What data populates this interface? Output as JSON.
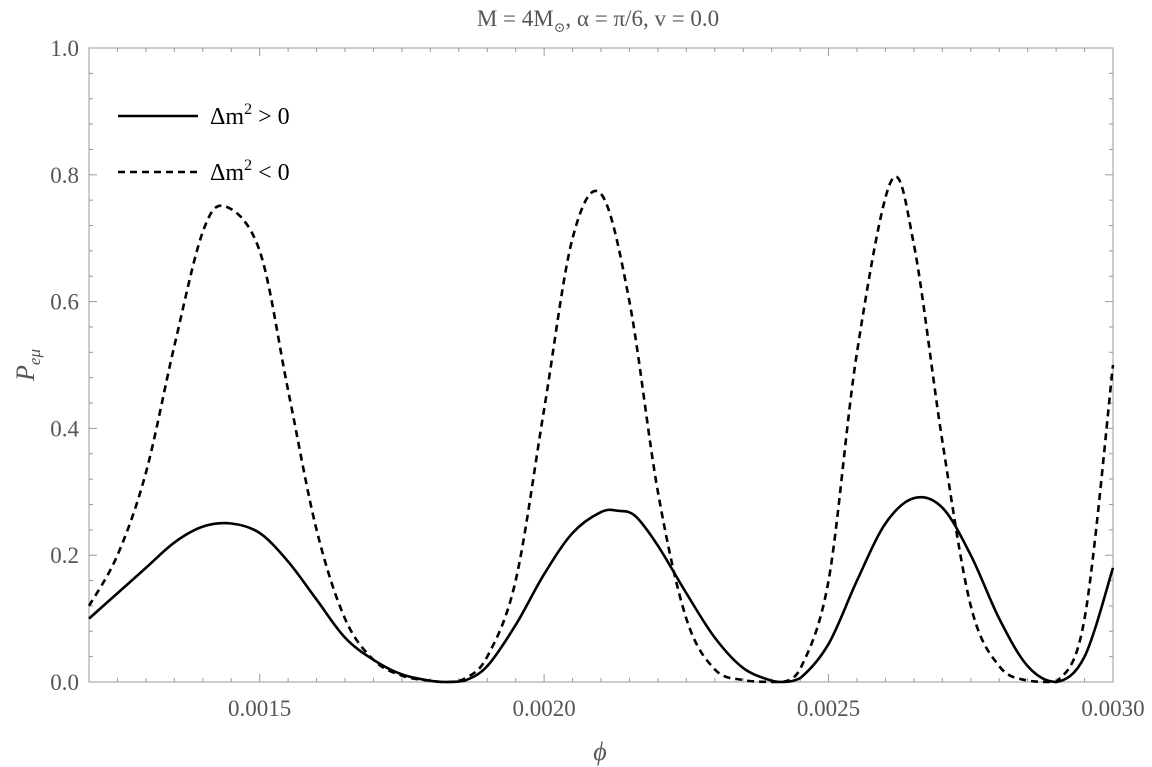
{
  "chart_data": {
    "type": "line",
    "title": "M = 4M⊙, α = π/6, v = 0.0",
    "xlabel": "ϕ",
    "ylabel": "Peμ",
    "xlim": [
      0.0012,
      0.003
    ],
    "ylim": [
      0.0,
      1.0
    ],
    "x_ticks": [
      0.0015,
      0.002,
      0.0025,
      0.003
    ],
    "x_tick_labels": [
      "0.0015",
      "0.0020",
      "0.0025",
      "0.0030"
    ],
    "y_ticks": [
      0.0,
      0.2,
      0.4,
      0.6,
      0.8,
      1.0
    ],
    "y_tick_labels": [
      "0.0",
      "0.2",
      "0.4",
      "0.6",
      "0.8",
      "1.0"
    ],
    "grid": false,
    "legend_position": "top-left",
    "series": [
      {
        "name": "Δm² > 0",
        "style": "solid",
        "color": "#000000",
        "x": [
          0.0012,
          0.00125,
          0.0013,
          0.00135,
          0.0014,
          0.00145,
          0.0015,
          0.00155,
          0.0016,
          0.00165,
          0.0017,
          0.00175,
          0.0018,
          0.00183,
          0.00186,
          0.0019,
          0.00195,
          0.002,
          0.00205,
          0.0021,
          0.00213,
          0.00216,
          0.0022,
          0.00225,
          0.0023,
          0.00235,
          0.0024,
          0.00242,
          0.00245,
          0.0025,
          0.00255,
          0.0026,
          0.00265,
          0.0027,
          0.00275,
          0.0028,
          0.00285,
          0.0029,
          0.00295,
          0.003
        ],
        "y": [
          0.1,
          0.14,
          0.18,
          0.22,
          0.245,
          0.25,
          0.235,
          0.19,
          0.13,
          0.07,
          0.035,
          0.012,
          0.002,
          0.0,
          0.002,
          0.025,
          0.09,
          0.17,
          0.235,
          0.268,
          0.27,
          0.262,
          0.215,
          0.14,
          0.07,
          0.022,
          0.002,
          0.0,
          0.006,
          0.06,
          0.16,
          0.25,
          0.29,
          0.275,
          0.2,
          0.1,
          0.025,
          0.0,
          0.04,
          0.18
        ]
      },
      {
        "name": "Δm² < 0",
        "style": "dashed",
        "color": "#000000",
        "x": [
          0.0012,
          0.00125,
          0.0013,
          0.00135,
          0.0014,
          0.00144,
          0.0015,
          0.00155,
          0.0016,
          0.00165,
          0.0017,
          0.00175,
          0.0018,
          0.00183,
          0.00186,
          0.0019,
          0.00195,
          0.002,
          0.00205,
          0.0021,
          0.00215,
          0.0022,
          0.00225,
          0.0023,
          0.00235,
          0.0024,
          0.00242,
          0.00245,
          0.0025,
          0.00255,
          0.00261,
          0.00265,
          0.0027,
          0.00275,
          0.0028,
          0.00285,
          0.0029,
          0.00295,
          0.003
        ],
        "y": [
          0.12,
          0.2,
          0.33,
          0.53,
          0.71,
          0.75,
          0.68,
          0.46,
          0.24,
          0.1,
          0.035,
          0.01,
          0.002,
          0.0,
          0.005,
          0.04,
          0.16,
          0.43,
          0.7,
          0.77,
          0.6,
          0.3,
          0.1,
          0.02,
          0.003,
          0.0,
          0.0,
          0.02,
          0.16,
          0.52,
          0.79,
          0.69,
          0.38,
          0.12,
          0.025,
          0.002,
          0.0,
          0.1,
          0.5
        ]
      }
    ]
  }
}
